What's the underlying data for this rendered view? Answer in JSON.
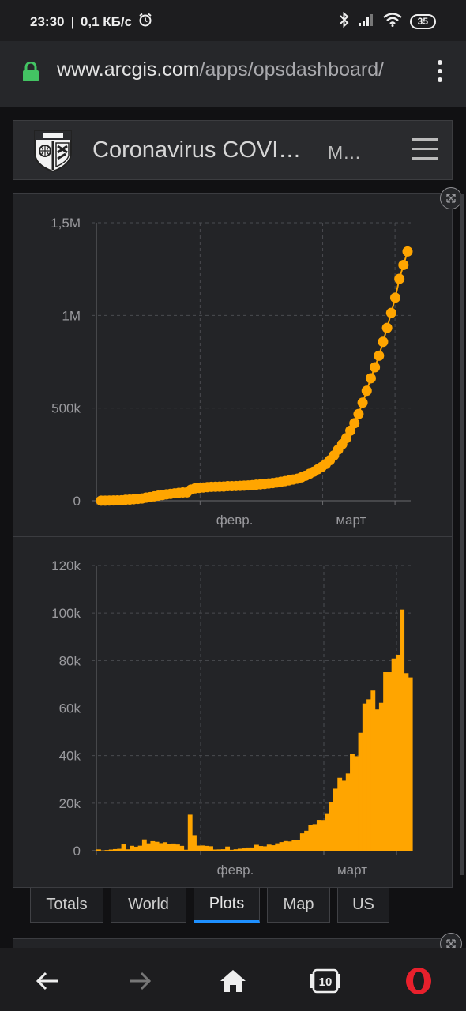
{
  "status_bar": {
    "time": "23:30",
    "network_speed": "0,1 КБ/с",
    "battery": "35"
  },
  "browser": {
    "url_domain": "www.arcgis.com",
    "url_path": "/apps/opsdashboard/"
  },
  "dashboard": {
    "title": "Coronavirus COVI…",
    "subtitle": "M…"
  },
  "charts": {
    "cumulative": {
      "y_ticks": [
        "1,5M",
        "1M",
        "500k",
        "0"
      ],
      "x_ticks": [
        "февр.",
        "март"
      ],
      "color": "#FFA500"
    },
    "daily": {
      "y_ticks": [
        "120k",
        "100k",
        "80k",
        "60k",
        "40k",
        "20k",
        "0"
      ],
      "x_ticks": [
        "февр.",
        "март"
      ],
      "color": "#FFA500"
    }
  },
  "chart_data": [
    {
      "type": "line",
      "x_label_positions": {
        "февр.": 0.33,
        "март": 0.72
      },
      "ylim": [
        0,
        1500000
      ],
      "markers": true,
      "values": [
        555,
        654,
        941,
        1434,
        2118,
        2927,
        5578,
        6166,
        8234,
        9927,
        12038,
        16787,
        19881,
        23892,
        27635,
        30817,
        34391,
        37120,
        40150,
        42762,
        44802,
        45221,
        60368,
        66885,
        69030,
        71224,
        73258,
        75136,
        75639,
        76197,
        76819,
        78572,
        78958,
        79561,
        80406,
        81388,
        82746,
        84112,
        86604,
        88585,
        90443,
        93016,
        95314,
        98425,
        102050,
        106099,
        109991,
        114381,
        118948,
        126214,
        134576,
        145483,
        156653,
        169593,
        182490,
        198238,
        218822,
        244933,
        275597,
        305036,
        337489,
        378287,
        418045,
        467653,
        529591,
        593291,
        660693,
        720117,
        782365,
        857487,
        932605,
        1013466,
        1095917,
        1197405,
        1272115,
        1345048
      ]
    },
    {
      "type": "bar",
      "ylim": [
        0,
        120000
      ],
      "values": [
        555,
        99,
        287,
        493,
        684,
        809,
        2651,
        588,
        2068,
        1693,
        2111,
        4749,
        3094,
        4011,
        3743,
        3182,
        3574,
        2729,
        3030,
        2612,
        2040,
        419,
        15147,
        6517,
        2145,
        2194,
        2034,
        1878,
        503,
        558,
        622,
        1753,
        386,
        603,
        845,
        982,
        1358,
        1366,
        2492,
        1981,
        1858,
        2573,
        2298,
        3111,
        3625,
        4049,
        3892,
        4390,
        4567,
        7266,
        8362,
        10907,
        11170,
        12940,
        12897,
        15748,
        20584,
        26111,
        30664,
        29439,
        32453,
        40798,
        39758,
        49608,
        61938,
        63700,
        67402,
        59424,
        62248,
        75122,
        75118,
        80861,
        82451,
        101488,
        74710,
        72933
      ]
    }
  ],
  "tabs": [
    {
      "label": "Totals",
      "active": false
    },
    {
      "label": "World",
      "active": false
    },
    {
      "label": "Plots",
      "active": true
    },
    {
      "label": "Map",
      "active": false
    },
    {
      "label": "US",
      "active": false
    }
  ],
  "navbar": {
    "tabs_count": "10"
  },
  "icons": [
    "alarm-icon",
    "bluetooth-icon",
    "signal-icon",
    "wifi-icon",
    "lock-icon",
    "more-vert-icon",
    "jhu-shield-icon",
    "hamburger-icon",
    "expand-icon",
    "back-icon",
    "forward-icon",
    "home-icon",
    "tabs-icon",
    "opera-icon"
  ]
}
